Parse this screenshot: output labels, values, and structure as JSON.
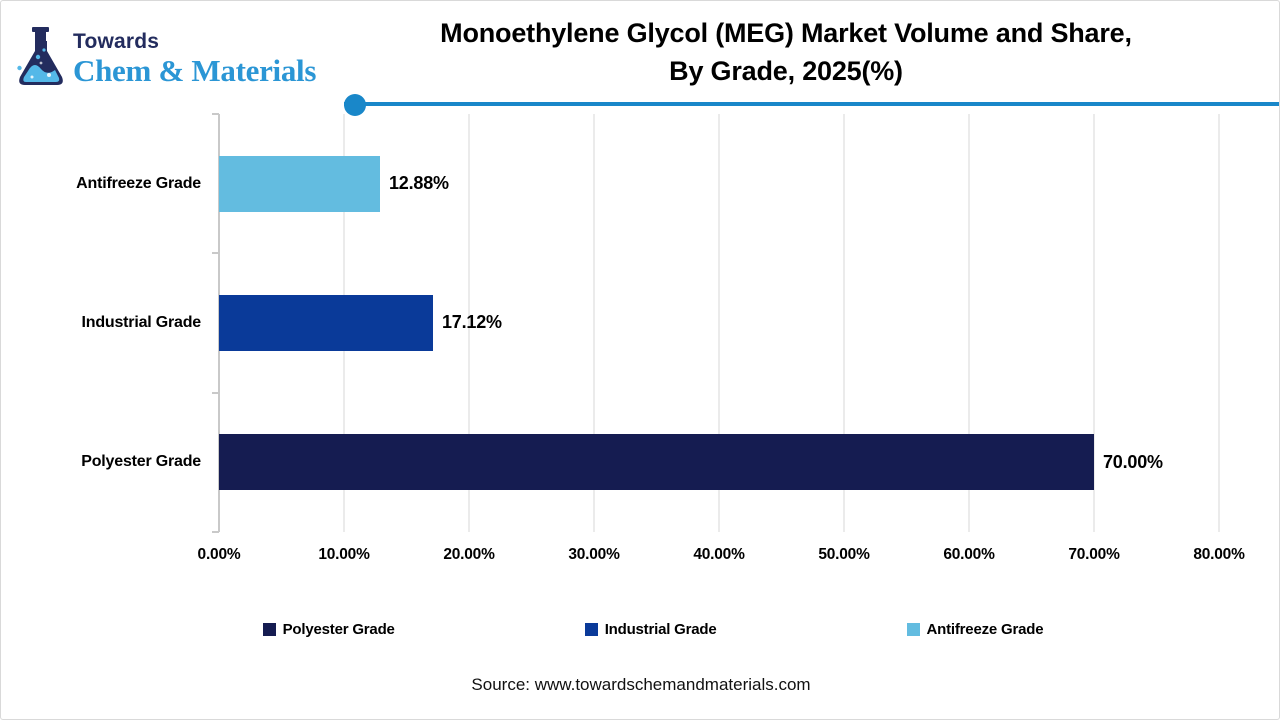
{
  "logo": {
    "brand_top": "Towards",
    "brand_bottom": "Chem & Materials",
    "icon": "flask-icon",
    "navy": "#232c5e",
    "blue": "#2b96d5"
  },
  "header": {
    "title_line1": "Monoethylene Glycol (MEG) Market Volume and Share,",
    "title_line2": "By Grade, 2025(%)",
    "accent_color": "#1987c9"
  },
  "chart_data": {
    "type": "bar",
    "orientation": "horizontal",
    "title": "Monoethylene Glycol (MEG) Market Volume and Share, By Grade, 2025(%)",
    "categories": [
      "Antifreeze Grade",
      "Industrial Grade",
      "Polyester Grade"
    ],
    "values": [
      12.88,
      17.12,
      70.0
    ],
    "value_labels": [
      "12.88%",
      "17.12%",
      "70.00%"
    ],
    "bar_colors": [
      "#63bce0",
      "#0a3a99",
      "#151c51"
    ],
    "xlim": [
      0,
      80
    ],
    "xtick_values": [
      0,
      10,
      20,
      30,
      40,
      50,
      60,
      70,
      80
    ],
    "xtick_labels": [
      "0.00%",
      "10.00%",
      "20.00%",
      "30.00%",
      "40.00%",
      "50.00%",
      "60.00%",
      "70.00%",
      "80.00%"
    ],
    "grid": true,
    "legend_position": "bottom",
    "legend": [
      {
        "label": "Polyester Grade",
        "color": "#151c51"
      },
      {
        "label": "Industrial Grade",
        "color": "#0a3a99"
      },
      {
        "label": "Antifreeze Grade",
        "color": "#63bce0"
      }
    ]
  },
  "footer": {
    "source": "Source: www.towardschemandmaterials.com"
  }
}
